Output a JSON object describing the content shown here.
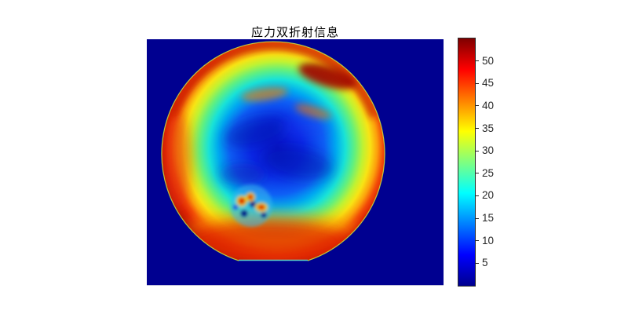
{
  "figure": {
    "background": "#FFFFFF",
    "title": "应力双折射信息",
    "title_color": "#000000"
  },
  "chart_data": {
    "type": "heatmap",
    "title": "应力双折射信息",
    "colormap": "jet",
    "clim": [
      0,
      55
    ],
    "grid": false,
    "axes_visible": false,
    "plot_background_color": "#000090",
    "colorbar": {
      "orientation": "vertical",
      "position": "right",
      "ticks": [
        5,
        10,
        15,
        20,
        25,
        30,
        35,
        40,
        45,
        50
      ],
      "tick_label_color": "#262626",
      "border_color": "#2a2a2a",
      "jet_stops_top_to_bottom": [
        {
          "pos": 0,
          "color": "#7F0000"
        },
        {
          "pos": 12.5,
          "color": "#FF0000"
        },
        {
          "pos": 37.5,
          "color": "#FFFF00"
        },
        {
          "pos": 62.5,
          "color": "#00FFFF"
        },
        {
          "pos": 87.5,
          "color": "#0000FF"
        },
        {
          "pos": 100,
          "color": "#00008F"
        }
      ]
    },
    "image": {
      "description": "Stress birefringence map of a circular wafer with a flat cut at the bottom edge, shown on a uniform zero-value background",
      "background_value": 0,
      "background_color": "#000090",
      "wafer": {
        "center_value_range": [
          4,
          12
        ],
        "mid_radius_value_range": [
          15,
          30
        ],
        "edge_ring_value_range": [
          40,
          55
        ],
        "edge_ring_color_range": [
          "#FF9000",
          "#7F0000"
        ],
        "center_color": "#0A16D8",
        "flat_edge": "bottom"
      },
      "features": [
        {
          "name": "hot-edge-ring",
          "value_range": [
            45,
            55
          ],
          "location": "entire rim, thickest at bottom and left"
        },
        {
          "name": "dark-red-rim-patch",
          "value_range": [
            50,
            55
          ],
          "location": "upper-right rim"
        },
        {
          "name": "defect-cluster",
          "value_range": [
            3,
            50
          ],
          "location": "lower-left of center, red blobs with dark blue spots"
        },
        {
          "name": "wafer-flat",
          "value_range": [
            20,
            30
          ],
          "location": "bottom chord with thin cyan line"
        }
      ]
    }
  }
}
